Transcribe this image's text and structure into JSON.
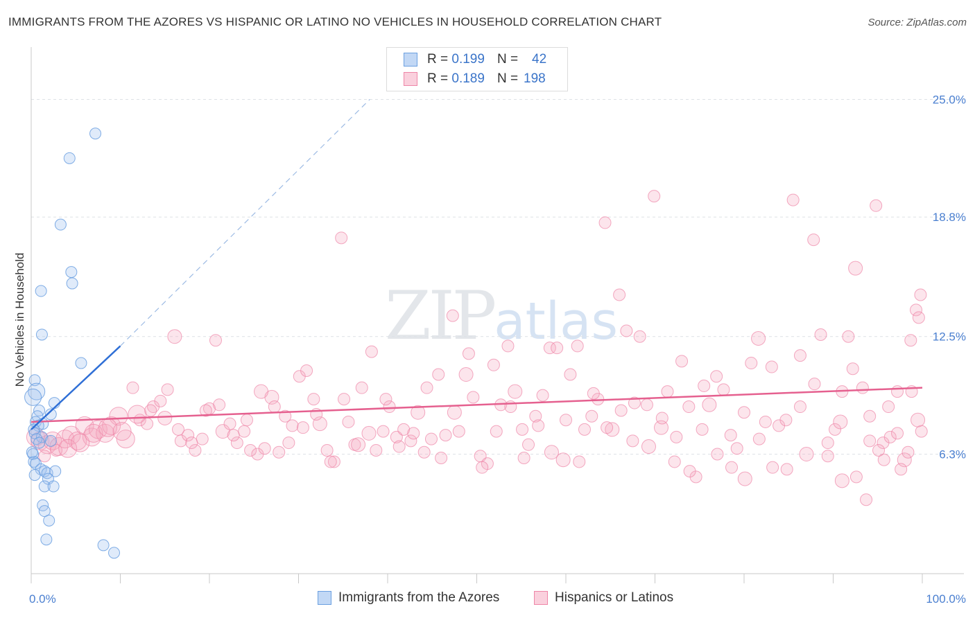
{
  "header": {
    "title": "IMMIGRANTS FROM THE AZORES VS HISPANIC OR LATINO NO VEHICLES IN HOUSEHOLD CORRELATION CHART",
    "source": "Source: ZipAtlas.com"
  },
  "watermark": {
    "zip": "ZIP",
    "atlas": "atlas"
  },
  "legend": {
    "rows": [
      {
        "r_label": "R =",
        "r_value": "0.199",
        "n_label": "N =",
        "n_value": "42",
        "color": "#9fc2ee"
      },
      {
        "r_label": "R =",
        "r_value": "0.189",
        "n_label": "N =",
        "n_value": "198",
        "color": "#f4a9c0"
      }
    ]
  },
  "bottom_legend": {
    "azores": "Immigrants from the Azores",
    "hispanic": "Hispanics or Latinos"
  },
  "chart_data": {
    "type": "scatter",
    "title": "IMMIGRANTS FROM THE AZORES VS HISPANIC OR LATINO NO VEHICLES IN HOUSEHOLD CORRELATION CHART",
    "xlabel": "",
    "ylabel": "No Vehicles in Household",
    "xlim": [
      0,
      100
    ],
    "ylim": [
      0,
      27.5
    ],
    "x_tick_labels": [
      "0.0%",
      "100.0%"
    ],
    "y_ticks": [
      6.3,
      12.5,
      18.8,
      25.0
    ],
    "y_tick_labels": [
      "6.3%",
      "12.5%",
      "18.8%",
      "25.0%"
    ],
    "colors": {
      "azores": "#6a9fe0",
      "hispanic": "#ee85a7",
      "azores_line": "#2f6fd6",
      "hispanic_line": "#e5608f"
    },
    "series": [
      {
        "name": "Immigrants from the Azores",
        "R": 0.199,
        "N": 42,
        "trend": {
          "x0": 0.0,
          "y0": 7.6,
          "x1": 10.0,
          "y1": 12.0,
          "dash_to_x": 38.0,
          "dash_to_y": 25.0
        },
        "points": [
          [
            7.2,
            23.2
          ],
          [
            4.3,
            21.9
          ],
          [
            3.3,
            18.4
          ],
          [
            4.5,
            15.9
          ],
          [
            4.6,
            15.3
          ],
          [
            1.1,
            14.9
          ],
          [
            1.2,
            12.6
          ],
          [
            5.6,
            11.1
          ],
          [
            0.4,
            10.2
          ],
          [
            0.6,
            9.6
          ],
          [
            0.2,
            9.3
          ],
          [
            2.6,
            9.0
          ],
          [
            0.9,
            8.6
          ],
          [
            0.7,
            8.3
          ],
          [
            2.2,
            8.4
          ],
          [
            0.5,
            8.0
          ],
          [
            1.3,
            7.9
          ],
          [
            0.8,
            7.8
          ],
          [
            0.3,
            7.6
          ],
          [
            0.4,
            7.4
          ],
          [
            1.2,
            7.2
          ],
          [
            0.6,
            7.1
          ],
          [
            0.9,
            6.9
          ],
          [
            2.2,
            7.0
          ],
          [
            0.2,
            6.3
          ],
          [
            0.3,
            5.9
          ],
          [
            0.5,
            5.8
          ],
          [
            1.1,
            5.5
          ],
          [
            1.5,
            5.4
          ],
          [
            0.4,
            5.2
          ],
          [
            1.8,
            5.3
          ],
          [
            2.7,
            5.4
          ],
          [
            1.9,
            5.0
          ],
          [
            1.5,
            4.6
          ],
          [
            2.5,
            4.6
          ],
          [
            1.3,
            3.6
          ],
          [
            1.5,
            3.3
          ],
          [
            2.0,
            2.8
          ],
          [
            1.7,
            1.8
          ],
          [
            8.1,
            1.5
          ],
          [
            9.3,
            1.1
          ],
          [
            0.1,
            6.4
          ]
        ]
      },
      {
        "name": "Hispanics or Latinos",
        "R": 0.189,
        "N": 198,
        "trend": {
          "x0": 0.0,
          "y0": 8.0,
          "x1": 100.0,
          "y1": 9.8
        },
        "points": [
          [
            0.5,
            7.2
          ],
          [
            1.0,
            7.0
          ],
          [
            1.8,
            6.8
          ],
          [
            2.4,
            7.0
          ],
          [
            3.1,
            6.7
          ],
          [
            3.8,
            7.1
          ],
          [
            4.5,
            7.3
          ],
          [
            5.2,
            7.0
          ],
          [
            6.0,
            7.8
          ],
          [
            6.8,
            7.2
          ],
          [
            7.5,
            7.6
          ],
          [
            8.3,
            7.4
          ],
          [
            9.0,
            7.8
          ],
          [
            9.8,
            8.3
          ],
          [
            10.6,
            7.1
          ],
          [
            11.4,
            9.8
          ],
          [
            12.2,
            8.1
          ],
          [
            13.0,
            7.9
          ],
          [
            13.7,
            8.8
          ],
          [
            14.5,
            9.1
          ],
          [
            15.3,
            9.7
          ],
          [
            16.1,
            12.5
          ],
          [
            16.8,
            7.0
          ],
          [
            17.6,
            7.3
          ],
          [
            18.4,
            6.5
          ],
          [
            19.2,
            7.1
          ],
          [
            20.0,
            8.7
          ],
          [
            20.7,
            12.3
          ],
          [
            21.5,
            7.5
          ],
          [
            22.3,
            7.9
          ],
          [
            23.1,
            6.9
          ],
          [
            23.9,
            7.5
          ],
          [
            24.6,
            6.5
          ],
          [
            25.4,
            6.3
          ],
          [
            26.2,
            6.6
          ],
          [
            27.0,
            9.3
          ],
          [
            27.8,
            6.4
          ],
          [
            28.5,
            8.3
          ],
          [
            29.3,
            7.8
          ],
          [
            30.1,
            10.4
          ],
          [
            30.9,
            10.7
          ],
          [
            31.7,
            9.2
          ],
          [
            32.4,
            7.9
          ],
          [
            33.2,
            6.5
          ],
          [
            34.0,
            5.9
          ],
          [
            34.8,
            17.7
          ],
          [
            35.6,
            8.0
          ],
          [
            36.3,
            6.8
          ],
          [
            37.1,
            9.8
          ],
          [
            37.9,
            7.4
          ],
          [
            38.7,
            6.5
          ],
          [
            39.5,
            7.5
          ],
          [
            40.2,
            8.8
          ],
          [
            41.0,
            7.2
          ],
          [
            41.8,
            7.6
          ],
          [
            42.6,
            7.0
          ],
          [
            43.4,
            8.5
          ],
          [
            44.1,
            6.4
          ],
          [
            44.9,
            7.1
          ],
          [
            45.7,
            10.5
          ],
          [
            46.5,
            7.3
          ],
          [
            47.3,
            13.6
          ],
          [
            48.0,
            7.5
          ],
          [
            48.8,
            10.5
          ],
          [
            49.6,
            9.3
          ],
          [
            50.4,
            6.2
          ],
          [
            51.2,
            5.8
          ],
          [
            51.9,
            11.0
          ],
          [
            52.7,
            8.9
          ],
          [
            53.5,
            12.0
          ],
          [
            54.3,
            9.6
          ],
          [
            55.1,
            7.6
          ],
          [
            55.8,
            6.8
          ],
          [
            56.6,
            8.3
          ],
          [
            57.4,
            9.4
          ],
          [
            58.2,
            11.9
          ],
          [
            59.0,
            11.9
          ],
          [
            59.7,
            6.0
          ],
          [
            60.5,
            10.5
          ],
          [
            61.3,
            12.0
          ],
          [
            62.1,
            7.6
          ],
          [
            62.9,
            8.3
          ],
          [
            63.6,
            9.2
          ],
          [
            64.4,
            18.5
          ],
          [
            65.2,
            7.6
          ],
          [
            66.0,
            14.7
          ],
          [
            66.8,
            12.8
          ],
          [
            67.5,
            7.0
          ],
          [
            68.3,
            12.5
          ],
          [
            69.1,
            8.9
          ],
          [
            69.9,
            19.9
          ],
          [
            70.7,
            7.7
          ],
          [
            71.4,
            9.6
          ],
          [
            72.2,
            5.9
          ],
          [
            73.0,
            11.2
          ],
          [
            73.8,
            8.8
          ],
          [
            74.6,
            5.1
          ],
          [
            75.3,
            7.6
          ],
          [
            76.1,
            8.9
          ],
          [
            76.9,
            10.4
          ],
          [
            77.7,
            9.7
          ],
          [
            78.5,
            7.3
          ],
          [
            79.2,
            6.6
          ],
          [
            80.0,
            8.5
          ],
          [
            80.8,
            11.1
          ],
          [
            81.6,
            12.4
          ],
          [
            82.4,
            8.0
          ],
          [
            83.1,
            10.9
          ],
          [
            83.9,
            7.8
          ],
          [
            84.7,
            8.1
          ],
          [
            85.5,
            19.7
          ],
          [
            86.3,
            11.5
          ],
          [
            87.0,
            6.3
          ],
          [
            87.8,
            17.6
          ],
          [
            88.6,
            12.6
          ],
          [
            89.4,
            6.9
          ],
          [
            90.2,
            7.6
          ],
          [
            91.0,
            9.6
          ],
          [
            91.7,
            12.5
          ],
          [
            92.5,
            16.1
          ],
          [
            93.3,
            9.8
          ],
          [
            94.1,
            7.0
          ],
          [
            94.8,
            19.4
          ],
          [
            95.6,
            6.9
          ],
          [
            96.4,
            7.2
          ],
          [
            97.2,
            9.6
          ],
          [
            98.0,
            6.0
          ],
          [
            98.7,
            12.3
          ],
          [
            99.3,
            13.9
          ],
          [
            99.6,
            13.5
          ],
          [
            99.8,
            14.7
          ],
          [
            1.5,
            6.2
          ],
          [
            2.8,
            6.5
          ],
          [
            4.1,
            6.6
          ],
          [
            5.5,
            6.9
          ],
          [
            7.0,
            7.4
          ],
          [
            8.6,
            7.7
          ],
          [
            10.2,
            7.5
          ],
          [
            11.9,
            8.4
          ],
          [
            13.4,
            8.6
          ],
          [
            15.0,
            8.2
          ],
          [
            16.5,
            7.6
          ],
          [
            18.0,
            6.9
          ],
          [
            19.6,
            8.6
          ],
          [
            21.1,
            8.9
          ],
          [
            22.7,
            7.3
          ],
          [
            24.2,
            8.1
          ],
          [
            25.8,
            9.6
          ],
          [
            27.3,
            8.8
          ],
          [
            28.9,
            6.9
          ],
          [
            30.5,
            7.7
          ],
          [
            32.0,
            8.4
          ],
          [
            33.6,
            5.9
          ],
          [
            35.1,
            9.2
          ],
          [
            36.7,
            6.8
          ],
          [
            38.2,
            11.7
          ],
          [
            39.8,
            9.2
          ],
          [
            41.3,
            6.7
          ],
          [
            42.9,
            7.4
          ],
          [
            44.4,
            9.8
          ],
          [
            46.0,
            6.1
          ],
          [
            47.5,
            8.5
          ],
          [
            49.1,
            11.6
          ],
          [
            50.6,
            5.6
          ],
          [
            52.2,
            7.5
          ],
          [
            53.8,
            8.8
          ],
          [
            55.3,
            6.1
          ],
          [
            56.9,
            7.8
          ],
          [
            58.4,
            6.4
          ],
          [
            60.0,
            8.1
          ],
          [
            61.5,
            5.9
          ],
          [
            63.1,
            9.5
          ],
          [
            64.6,
            7.7
          ],
          [
            66.2,
            8.6
          ],
          [
            67.7,
            9.0
          ],
          [
            69.3,
            6.7
          ],
          [
            70.8,
            8.2
          ],
          [
            72.4,
            7.2
          ],
          [
            73.9,
            5.4
          ],
          [
            75.5,
            9.9
          ],
          [
            77.0,
            6.3
          ],
          [
            78.6,
            5.6
          ],
          [
            80.1,
            5.0
          ],
          [
            81.7,
            7.1
          ],
          [
            83.2,
            5.6
          ],
          [
            84.8,
            5.5
          ],
          [
            86.3,
            8.8
          ],
          [
            87.9,
            10.0
          ],
          [
            89.4,
            6.2
          ],
          [
            91.0,
            4.9
          ],
          [
            92.6,
            5.1
          ],
          [
            94.1,
            8.3
          ],
          [
            95.7,
            6.0
          ],
          [
            97.2,
            7.4
          ],
          [
            98.8,
            9.6
          ],
          [
            99.9,
            7.5
          ],
          [
            99.5,
            8.1
          ],
          [
            98.4,
            6.4
          ],
          [
            97.6,
            5.5
          ],
          [
            96.2,
            8.8
          ],
          [
            95.1,
            6.5
          ],
          [
            93.7,
            3.9
          ],
          [
            92.2,
            10.8
          ],
          [
            90.8,
            8.0
          ]
        ]
      }
    ]
  }
}
